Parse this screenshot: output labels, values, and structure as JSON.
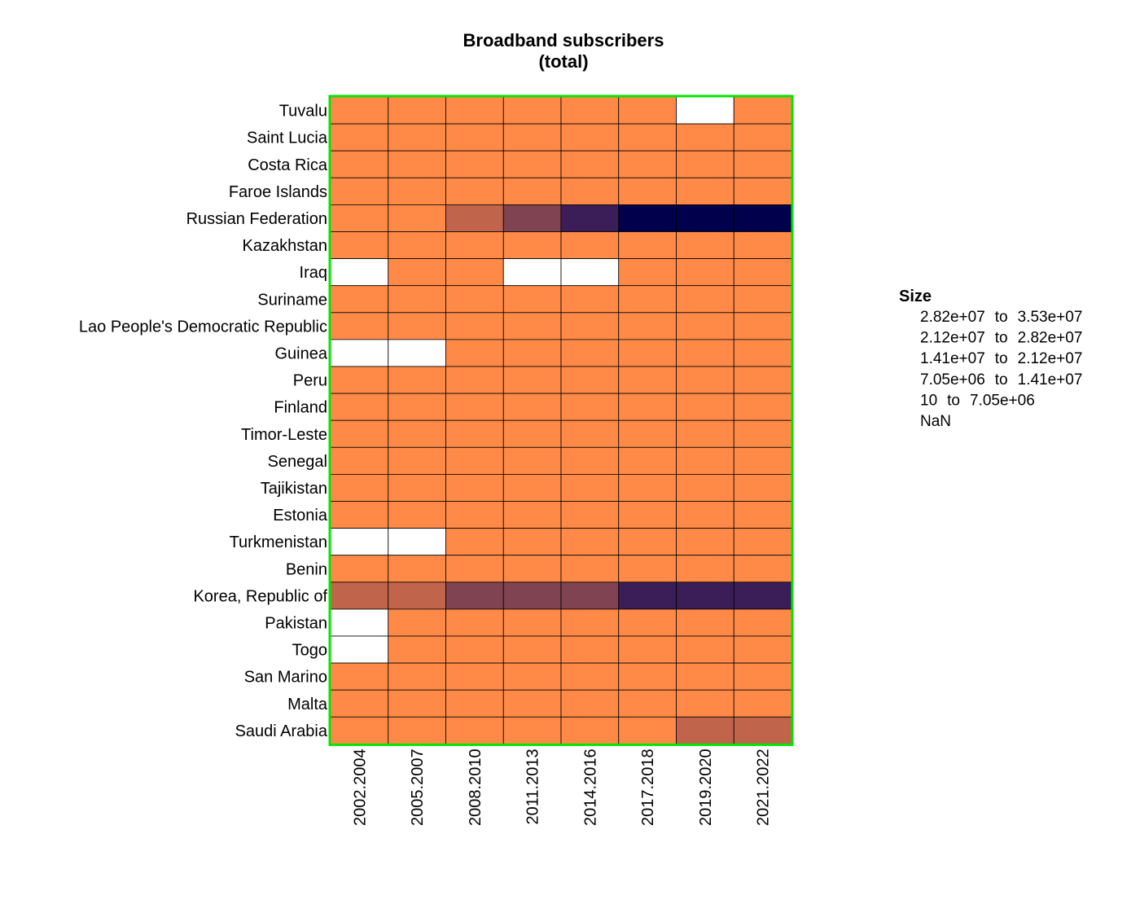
{
  "chart_data": {
    "type": "heatmap",
    "title": "Broadband subscribers",
    "subtitle": "(total)",
    "x_categories": [
      "2002.2004",
      "2005.2007",
      "2008.2010",
      "2011.2013",
      "2014.2016",
      "2017.2018",
      "2019.2020",
      "2021.2022"
    ],
    "y_categories": [
      "Tuvalu",
      "Saint Lucia",
      "Costa Rica",
      "Faroe Islands",
      "Russian Federation",
      "Kazakhstan",
      "Iraq",
      "Suriname",
      "Lao People's Democratic Republic",
      "Guinea",
      "Peru",
      "Finland",
      "Timor-Leste",
      "Senegal",
      "Tajikistan",
      "Estonia",
      "Turkmenistan",
      "Benin",
      "Korea, Republic of",
      "Pakistan",
      "Togo",
      "San Marino",
      "Malta",
      "Saudi Arabia"
    ],
    "bin_index": [
      [
        4,
        4,
        4,
        4,
        4,
        4,
        5,
        4
      ],
      [
        4,
        4,
        4,
        4,
        4,
        4,
        4,
        4
      ],
      [
        4,
        4,
        4,
        4,
        4,
        4,
        4,
        4
      ],
      [
        4,
        4,
        4,
        4,
        4,
        4,
        4,
        4
      ],
      [
        4,
        4,
        3,
        2,
        1,
        0,
        0,
        0
      ],
      [
        4,
        4,
        4,
        4,
        4,
        4,
        4,
        4
      ],
      [
        5,
        4,
        4,
        5,
        5,
        4,
        4,
        4
      ],
      [
        4,
        4,
        4,
        4,
        4,
        4,
        4,
        4
      ],
      [
        4,
        4,
        4,
        4,
        4,
        4,
        4,
        4
      ],
      [
        5,
        5,
        4,
        4,
        4,
        4,
        4,
        4
      ],
      [
        4,
        4,
        4,
        4,
        4,
        4,
        4,
        4
      ],
      [
        4,
        4,
        4,
        4,
        4,
        4,
        4,
        4
      ],
      [
        4,
        4,
        4,
        4,
        4,
        4,
        4,
        4
      ],
      [
        4,
        4,
        4,
        4,
        4,
        4,
        4,
        4
      ],
      [
        4,
        4,
        4,
        4,
        4,
        4,
        4,
        4
      ],
      [
        4,
        4,
        4,
        4,
        4,
        4,
        4,
        4
      ],
      [
        5,
        5,
        4,
        4,
        4,
        4,
        4,
        4
      ],
      [
        4,
        4,
        4,
        4,
        4,
        4,
        4,
        4
      ],
      [
        3,
        3,
        2,
        2,
        2,
        1,
        1,
        1
      ],
      [
        5,
        4,
        4,
        4,
        4,
        4,
        4,
        4
      ],
      [
        5,
        4,
        4,
        4,
        4,
        4,
        4,
        4
      ],
      [
        4,
        4,
        4,
        4,
        4,
        4,
        4,
        4
      ],
      [
        4,
        4,
        4,
        4,
        4,
        4,
        4,
        4
      ],
      [
        4,
        4,
        4,
        4,
        4,
        4,
        3,
        3
      ]
    ],
    "legend": {
      "title": "Size",
      "placement": "right",
      "bins": [
        {
          "low": "2.82e+07",
          "sep": "to",
          "high": "3.53e+07",
          "color": "#00004d"
        },
        {
          "low": "2.12e+07",
          "sep": "to",
          "high": "2.82e+07",
          "color": "#3b1e57"
        },
        {
          "low": "1.41e+07",
          "sep": "to",
          "high": "2.12e+07",
          "color": "#7f4351"
        },
        {
          "low": "7.05e+06",
          "sep": "to",
          "high": "1.41e+07",
          "color": "#c0644b"
        },
        {
          "low": "10",
          "sep": "to",
          "high": "7.05e+06",
          "color": "#ff8a47"
        },
        {
          "label": "NaN",
          "color": "#ffffff"
        }
      ]
    },
    "frame_color": "#00e600",
    "grid": true
  }
}
